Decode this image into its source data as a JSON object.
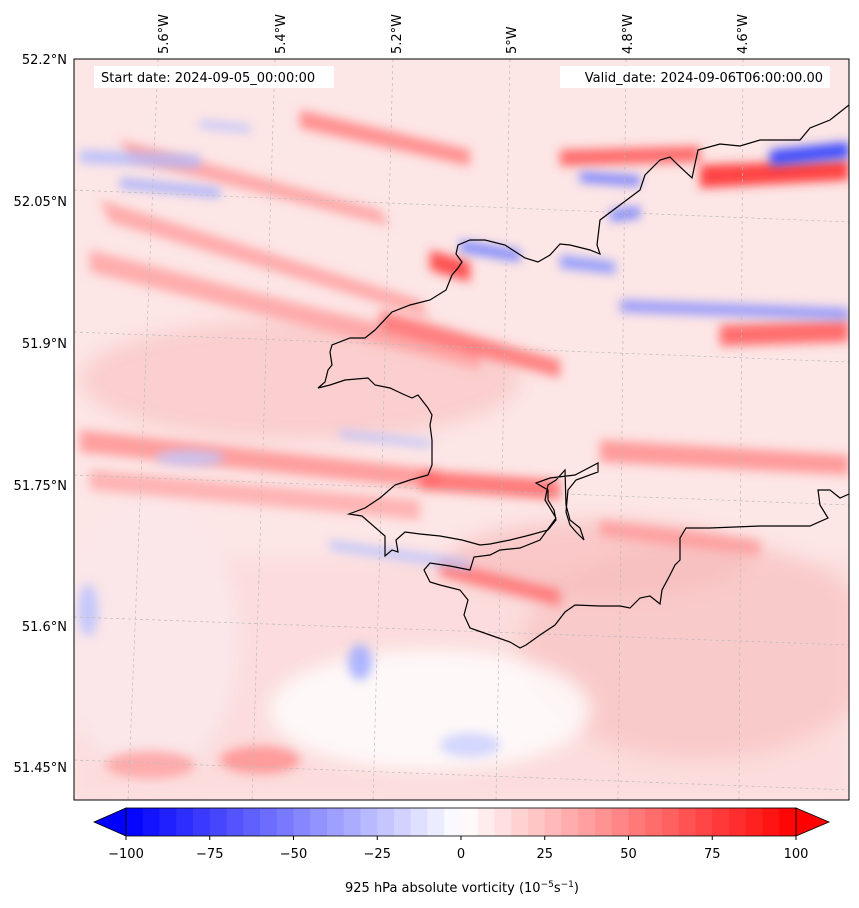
{
  "header": {
    "start_date": "Start date: 2024-09-05_00:00:00",
    "valid_date": "Valid_date: 2024-09-06T06:00:00.00"
  },
  "map": {
    "projection": "rotated",
    "region": "South Wales coast and Bristol Channel",
    "lat_labels": [
      "52.2°N",
      "52.05°N",
      "51.9°N",
      "51.75°N",
      "51.6°N",
      "51.45°N"
    ],
    "lon_labels": [
      "5.6°W",
      "5.4°W",
      "5.2°W",
      "5°W",
      "4.8°W",
      "4.6°W"
    ],
    "gridlines": true,
    "coastline_color": "#000000",
    "field": "925 hPa absolute vorticity",
    "field_range": [
      -100,
      100
    ],
    "dominant_sign": "positive (red) bands oriented WNW–ESE"
  },
  "colorbar": {
    "ticks": [
      "−100",
      "−75",
      "−50",
      "−25",
      "0",
      "25",
      "50",
      "75",
      "100"
    ],
    "label": "925 hPa absolute vorticity (10",
    "label_exp1": "−5",
    "label_mid": "s",
    "label_exp2": "−1",
    "label_end": ")",
    "negative_color": "#0000ff",
    "zero_color": "#ffffff",
    "positive_color": "#ff0000",
    "extend": "both"
  }
}
